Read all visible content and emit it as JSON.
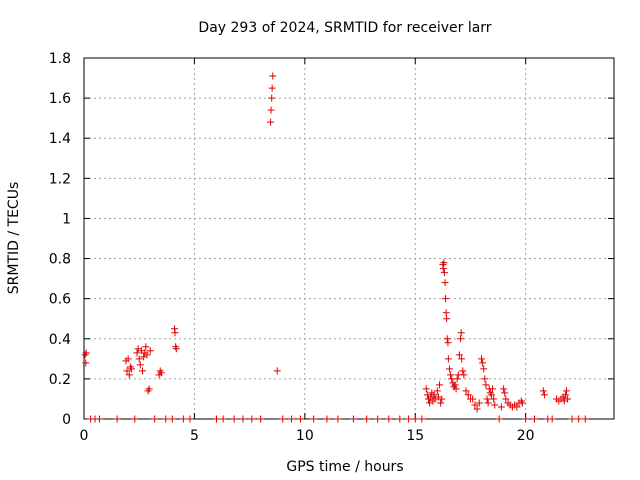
{
  "chart_data": {
    "type": "scatter",
    "title": "Day 293 of 2024, SRMTID for receiver larr",
    "xlabel": "GPS time / hours",
    "ylabel": "SRMTID / TECUs",
    "xlim": [
      0,
      24
    ],
    "ylim": [
      0,
      1.8
    ],
    "xticks": [
      0,
      5,
      10,
      15,
      20
    ],
    "xtick_labels": [
      "0",
      "5",
      "10",
      "15",
      "20"
    ],
    "yticks": [
      0,
      0.2,
      0.4,
      0.6,
      0.8,
      1,
      1.2,
      1.4,
      1.6,
      1.8
    ],
    "ytick_labels": [
      "0",
      "0.2",
      "0.4",
      "0.6",
      "0.8",
      "1",
      "1.2",
      "1.4",
      "1.6",
      "1.8"
    ],
    "grid": true,
    "marker": "plus",
    "color": "#e00000",
    "series": [
      {
        "name": "SRMTID",
        "points": [
          [
            0.05,
            0.32
          ],
          [
            0.08,
            0.28
          ],
          [
            0.1,
            0.33
          ],
          [
            0.3,
            0
          ],
          [
            0.5,
            0
          ],
          [
            0.7,
            0
          ],
          [
            1.5,
            0
          ],
          [
            1.9,
            0.29
          ],
          [
            1.95,
            0.24
          ],
          [
            2.0,
            0.3
          ],
          [
            2.05,
            0.22
          ],
          [
            2.1,
            0.26
          ],
          [
            2.15,
            0.25
          ],
          [
            2.3,
            0
          ],
          [
            2.4,
            0.33
          ],
          [
            2.45,
            0.35
          ],
          [
            2.5,
            0.3
          ],
          [
            2.55,
            0.27
          ],
          [
            2.6,
            0.34
          ],
          [
            2.65,
            0.24
          ],
          [
            2.7,
            0.31
          ],
          [
            2.75,
            0.33
          ],
          [
            2.8,
            0.36
          ],
          [
            2.85,
            0.32
          ],
          [
            2.9,
            0.14
          ],
          [
            2.95,
            0.15
          ],
          [
            3.0,
            0.34
          ],
          [
            3.2,
            0
          ],
          [
            3.4,
            0.22
          ],
          [
            3.45,
            0.24
          ],
          [
            3.5,
            0.23
          ],
          [
            3.7,
            0
          ],
          [
            4.0,
            0
          ],
          [
            4.1,
            0.45
          ],
          [
            4.12,
            0.43
          ],
          [
            4.15,
            0.36
          ],
          [
            4.18,
            0.35
          ],
          [
            4.5,
            0
          ],
          [
            4.8,
            0
          ],
          [
            6.0,
            0
          ],
          [
            6.3,
            0
          ],
          [
            6.8,
            0
          ],
          [
            7.2,
            0
          ],
          [
            7.6,
            0
          ],
          [
            8.0,
            0
          ],
          [
            8.45,
            1.48
          ],
          [
            8.47,
            1.54
          ],
          [
            8.5,
            1.6
          ],
          [
            8.52,
            1.65
          ],
          [
            8.55,
            1.71
          ],
          [
            8.75,
            0.24
          ],
          [
            9.0,
            0
          ],
          [
            9.4,
            0
          ],
          [
            9.8,
            0
          ],
          [
            10.4,
            0
          ],
          [
            11.0,
            0
          ],
          [
            11.5,
            0
          ],
          [
            12.2,
            0
          ],
          [
            12.8,
            0
          ],
          [
            13.3,
            0
          ],
          [
            13.8,
            0
          ],
          [
            14.3,
            0
          ],
          [
            14.7,
            0
          ],
          [
            15.0,
            0
          ],
          [
            15.3,
            0
          ],
          [
            15.5,
            0.15
          ],
          [
            15.55,
            0.12
          ],
          [
            15.6,
            0.1
          ],
          [
            15.65,
            0.08
          ],
          [
            15.7,
            0.11
          ],
          [
            15.75,
            0.13
          ],
          [
            15.8,
            0.09
          ],
          [
            15.85,
            0.12
          ],
          [
            15.9,
            0.1
          ],
          [
            16.0,
            0.14
          ],
          [
            16.05,
            0.11
          ],
          [
            16.1,
            0.17
          ],
          [
            16.15,
            0.08
          ],
          [
            16.2,
            0.1
          ],
          [
            16.25,
            0.77
          ],
          [
            16.27,
            0.75
          ],
          [
            16.3,
            0.78
          ],
          [
            16.32,
            0.73
          ],
          [
            16.35,
            0.68
          ],
          [
            16.37,
            0.6
          ],
          [
            16.4,
            0.53
          ],
          [
            16.42,
            0.5
          ],
          [
            16.45,
            0.4
          ],
          [
            16.48,
            0.38
          ],
          [
            16.5,
            0.3
          ],
          [
            16.55,
            0.25
          ],
          [
            16.6,
            0.22
          ],
          [
            16.65,
            0.2
          ],
          [
            16.7,
            0.18
          ],
          [
            16.75,
            0.16
          ],
          [
            16.8,
            0.17
          ],
          [
            16.85,
            0.15
          ],
          [
            16.9,
            0.2
          ],
          [
            16.95,
            0.22
          ],
          [
            17.0,
            0.32
          ],
          [
            17.05,
            0.4
          ],
          [
            17.08,
            0.43
          ],
          [
            17.1,
            0.3
          ],
          [
            17.15,
            0.24
          ],
          [
            17.2,
            0.22
          ],
          [
            17.3,
            0.14
          ],
          [
            17.4,
            0.12
          ],
          [
            17.5,
            0.1
          ],
          [
            17.6,
            0.1
          ],
          [
            17.7,
            0.07
          ],
          [
            17.8,
            0.05
          ],
          [
            17.9,
            0.08
          ],
          [
            18.0,
            0.3
          ],
          [
            18.05,
            0.28
          ],
          [
            18.1,
            0.25
          ],
          [
            18.15,
            0.2
          ],
          [
            18.2,
            0.17
          ],
          [
            18.25,
            0.1
          ],
          [
            18.3,
            0.08
          ],
          [
            18.35,
            0.15
          ],
          [
            18.4,
            0.13
          ],
          [
            18.45,
            0.12
          ],
          [
            18.5,
            0.15
          ],
          [
            18.55,
            0.1
          ],
          [
            18.6,
            0.07
          ],
          [
            18.8,
            0
          ],
          [
            18.9,
            0.06
          ],
          [
            19.0,
            0.15
          ],
          [
            19.05,
            0.13
          ],
          [
            19.1,
            0.1
          ],
          [
            19.2,
            0.08
          ],
          [
            19.3,
            0.07
          ],
          [
            19.4,
            0.06
          ],
          [
            19.5,
            0.07
          ],
          [
            19.6,
            0.06
          ],
          [
            19.7,
            0.08
          ],
          [
            19.8,
            0.09
          ],
          [
            19.85,
            0.08
          ],
          [
            20.0,
            0
          ],
          [
            20.4,
            0
          ],
          [
            20.8,
            0.14
          ],
          [
            20.85,
            0.12
          ],
          [
            21.0,
            0
          ],
          [
            21.2,
            0
          ],
          [
            21.4,
            0.1
          ],
          [
            21.5,
            0.09
          ],
          [
            21.6,
            0.1
          ],
          [
            21.7,
            0.11
          ],
          [
            21.75,
            0.09
          ],
          [
            21.8,
            0.12
          ],
          [
            21.85,
            0.14
          ],
          [
            21.9,
            0.1
          ],
          [
            22.1,
            0
          ],
          [
            22.4,
            0
          ],
          [
            22.7,
            0
          ]
        ]
      }
    ]
  }
}
